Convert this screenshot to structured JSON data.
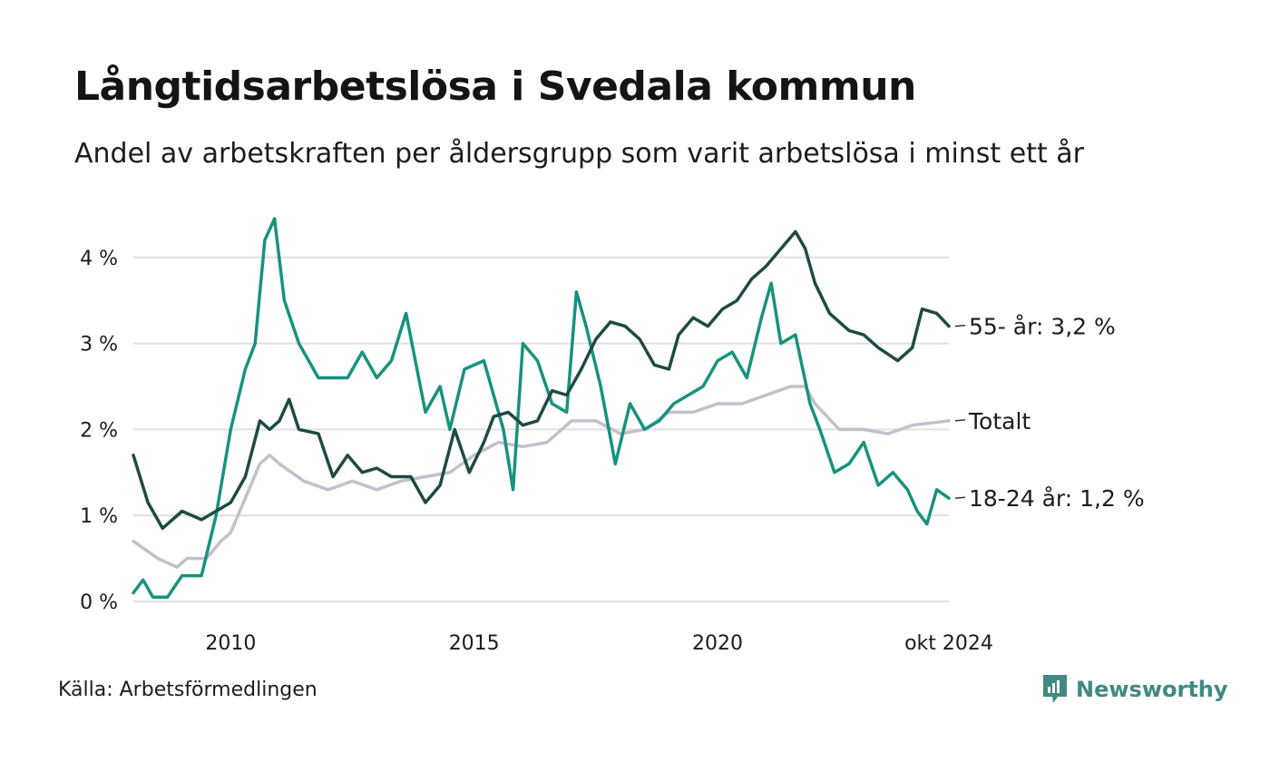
{
  "header": {
    "title": "Långtidsarbetslösa i Svedala kommun",
    "subtitle": "Andel av arbetskraften per åldersgrupp som varit arbetslösa i minst ett år"
  },
  "footer": {
    "source": "Källa: Arbetsförmedlingen",
    "brand": "Newsworthy"
  },
  "colors": {
    "age_55": "#1f4a44",
    "total": "#c3bfcb",
    "age_18_24": "#17927f",
    "grid": "#e0e0e0",
    "brand": "#3f8a82"
  },
  "chart_data": {
    "type": "line",
    "x_unit": "year",
    "x_range": [
      2008.0,
      2024.75
    ],
    "ylim": [
      0,
      4.6
    ],
    "y_ticks": [
      {
        "value": 0,
        "label": "0 %"
      },
      {
        "value": 1,
        "label": "1 %"
      },
      {
        "value": 2,
        "label": "2 %"
      },
      {
        "value": 3,
        "label": "3 %"
      },
      {
        "value": 4,
        "label": "4 %"
      }
    ],
    "x_ticks": [
      {
        "value": 2010,
        "label": "2010"
      },
      {
        "value": 2015,
        "label": "2015"
      },
      {
        "value": 2020,
        "label": "2020"
      },
      {
        "value": 2024.75,
        "label": "okt 2024"
      }
    ],
    "grid": true,
    "series": [
      {
        "key": "total",
        "end_label": "Totalt",
        "color": "#c3bfcb",
        "points": [
          [
            2008.0,
            0.7
          ],
          [
            2008.5,
            0.5
          ],
          [
            2008.9,
            0.4
          ],
          [
            2009.1,
            0.5
          ],
          [
            2009.5,
            0.5
          ],
          [
            2009.8,
            0.7
          ],
          [
            2010.0,
            0.8
          ],
          [
            2010.3,
            1.2
          ],
          [
            2010.6,
            1.6
          ],
          [
            2010.8,
            1.7
          ],
          [
            2011.0,
            1.6
          ],
          [
            2011.5,
            1.4
          ],
          [
            2012.0,
            1.3
          ],
          [
            2012.5,
            1.4
          ],
          [
            2013.0,
            1.3
          ],
          [
            2013.5,
            1.4
          ],
          [
            2014.0,
            1.45
          ],
          [
            2014.5,
            1.5
          ],
          [
            2015.0,
            1.7
          ],
          [
            2015.5,
            1.85
          ],
          [
            2016.0,
            1.8
          ],
          [
            2016.5,
            1.85
          ],
          [
            2017.0,
            2.1
          ],
          [
            2017.5,
            2.1
          ],
          [
            2018.0,
            1.95
          ],
          [
            2018.5,
            2.0
          ],
          [
            2019.0,
            2.2
          ],
          [
            2019.5,
            2.2
          ],
          [
            2020.0,
            2.3
          ],
          [
            2020.5,
            2.3
          ],
          [
            2021.0,
            2.4
          ],
          [
            2021.5,
            2.5
          ],
          [
            2021.8,
            2.5
          ],
          [
            2022.0,
            2.3
          ],
          [
            2022.5,
            2.0
          ],
          [
            2023.0,
            2.0
          ],
          [
            2023.5,
            1.95
          ],
          [
            2024.0,
            2.05
          ],
          [
            2024.75,
            2.1
          ]
        ]
      },
      {
        "key": "age_55",
        "end_label": "55- år: 3,2 %",
        "color": "#1f4a44",
        "points": [
          [
            2008.0,
            1.7
          ],
          [
            2008.3,
            1.15
          ],
          [
            2008.6,
            0.85
          ],
          [
            2009.0,
            1.05
          ],
          [
            2009.4,
            0.95
          ],
          [
            2009.7,
            1.05
          ],
          [
            2010.0,
            1.15
          ],
          [
            2010.3,
            1.45
          ],
          [
            2010.6,
            2.1
          ],
          [
            2010.8,
            2.0
          ],
          [
            2011.0,
            2.1
          ],
          [
            2011.2,
            2.35
          ],
          [
            2011.4,
            2.0
          ],
          [
            2011.8,
            1.95
          ],
          [
            2012.1,
            1.45
          ],
          [
            2012.4,
            1.7
          ],
          [
            2012.7,
            1.5
          ],
          [
            2013.0,
            1.55
          ],
          [
            2013.3,
            1.45
          ],
          [
            2013.7,
            1.45
          ],
          [
            2014.0,
            1.15
          ],
          [
            2014.3,
            1.35
          ],
          [
            2014.6,
            2.0
          ],
          [
            2014.9,
            1.5
          ],
          [
            2015.2,
            1.85
          ],
          [
            2015.4,
            2.15
          ],
          [
            2015.7,
            2.2
          ],
          [
            2016.0,
            2.05
          ],
          [
            2016.3,
            2.1
          ],
          [
            2016.6,
            2.45
          ],
          [
            2016.9,
            2.4
          ],
          [
            2017.2,
            2.7
          ],
          [
            2017.5,
            3.05
          ],
          [
            2017.8,
            3.25
          ],
          [
            2018.1,
            3.2
          ],
          [
            2018.4,
            3.05
          ],
          [
            2018.7,
            2.75
          ],
          [
            2019.0,
            2.7
          ],
          [
            2019.2,
            3.1
          ],
          [
            2019.5,
            3.3
          ],
          [
            2019.8,
            3.2
          ],
          [
            2020.1,
            3.4
          ],
          [
            2020.4,
            3.5
          ],
          [
            2020.7,
            3.75
          ],
          [
            2021.0,
            3.9
          ],
          [
            2021.3,
            4.1
          ],
          [
            2021.6,
            4.3
          ],
          [
            2021.8,
            4.1
          ],
          [
            2022.0,
            3.7
          ],
          [
            2022.3,
            3.35
          ],
          [
            2022.7,
            3.15
          ],
          [
            2023.0,
            3.1
          ],
          [
            2023.3,
            2.95
          ],
          [
            2023.7,
            2.8
          ],
          [
            2024.0,
            2.95
          ],
          [
            2024.2,
            3.4
          ],
          [
            2024.5,
            3.35
          ],
          [
            2024.75,
            3.2
          ]
        ]
      },
      {
        "key": "age_18_24",
        "end_label": "18-24 år: 1,2 %",
        "color": "#17927f",
        "points": [
          [
            2008.0,
            0.1
          ],
          [
            2008.2,
            0.25
          ],
          [
            2008.4,
            0.05
          ],
          [
            2008.7,
            0.05
          ],
          [
            2009.0,
            0.3
          ],
          [
            2009.4,
            0.3
          ],
          [
            2009.7,
            1.0
          ],
          [
            2010.0,
            2.0
          ],
          [
            2010.3,
            2.7
          ],
          [
            2010.5,
            3.0
          ],
          [
            2010.7,
            4.2
          ],
          [
            2010.9,
            4.45
          ],
          [
            2011.1,
            3.5
          ],
          [
            2011.4,
            3.0
          ],
          [
            2011.8,
            2.6
          ],
          [
            2012.1,
            2.6
          ],
          [
            2012.4,
            2.6
          ],
          [
            2012.7,
            2.9
          ],
          [
            2013.0,
            2.6
          ],
          [
            2013.3,
            2.8
          ],
          [
            2013.6,
            3.35
          ],
          [
            2014.0,
            2.2
          ],
          [
            2014.3,
            2.5
          ],
          [
            2014.5,
            2.0
          ],
          [
            2014.8,
            2.7
          ],
          [
            2015.2,
            2.8
          ],
          [
            2015.6,
            2.0
          ],
          [
            2015.8,
            1.3
          ],
          [
            2016.0,
            3.0
          ],
          [
            2016.3,
            2.8
          ],
          [
            2016.6,
            2.3
          ],
          [
            2016.9,
            2.2
          ],
          [
            2017.1,
            3.6
          ],
          [
            2017.3,
            3.2
          ],
          [
            2017.6,
            2.5
          ],
          [
            2017.9,
            1.6
          ],
          [
            2018.2,
            2.3
          ],
          [
            2018.5,
            2.0
          ],
          [
            2018.8,
            2.1
          ],
          [
            2019.1,
            2.3
          ],
          [
            2019.4,
            2.4
          ],
          [
            2019.7,
            2.5
          ],
          [
            2020.0,
            2.8
          ],
          [
            2020.3,
            2.9
          ],
          [
            2020.6,
            2.6
          ],
          [
            2020.9,
            3.3
          ],
          [
            2021.1,
            3.7
          ],
          [
            2021.3,
            3.0
          ],
          [
            2021.6,
            3.1
          ],
          [
            2021.9,
            2.3
          ],
          [
            2022.1,
            2.0
          ],
          [
            2022.4,
            1.5
          ],
          [
            2022.7,
            1.6
          ],
          [
            2023.0,
            1.85
          ],
          [
            2023.3,
            1.35
          ],
          [
            2023.6,
            1.5
          ],
          [
            2023.9,
            1.3
          ],
          [
            2024.1,
            1.05
          ],
          [
            2024.3,
            0.9
          ],
          [
            2024.5,
            1.3
          ],
          [
            2024.75,
            1.2
          ]
        ]
      }
    ]
  }
}
